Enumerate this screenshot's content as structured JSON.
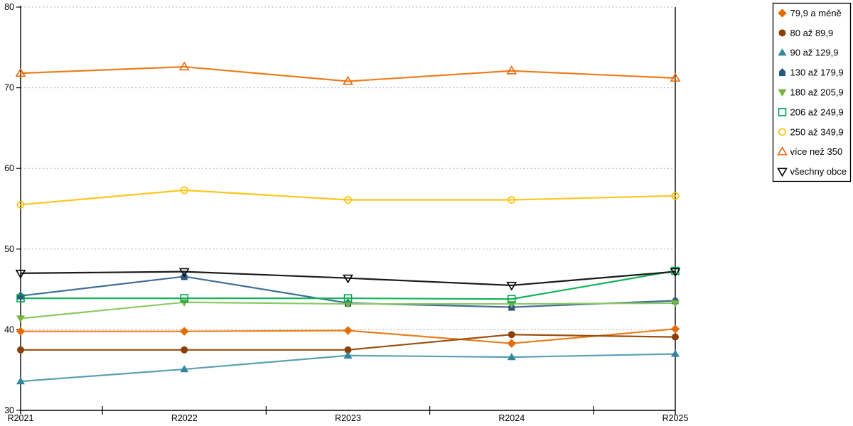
{
  "chart_data": {
    "type": "line",
    "title": "",
    "xlabel": "",
    "ylabel": "",
    "categories": [
      "R2021",
      "R2022",
      "R2023",
      "R2024",
      "R2025"
    ],
    "ylim": [
      30,
      80
    ],
    "yticks": [
      30,
      40,
      50,
      60,
      70,
      80
    ],
    "grid": "horizontal-dotted",
    "gridline_color": "#ababab",
    "axis_color": "#000000",
    "legend_position": "right",
    "legend_border_color": "#000000",
    "series": [
      {
        "name": "79,9 a méně",
        "marker": "diamond",
        "fill": "filled",
        "color": "#E36C09",
        "line_color": "#E97F1E",
        "values": [
          39.8,
          39.8,
          39.9,
          38.3,
          40.1
        ]
      },
      {
        "name": "80 až 89,9",
        "marker": "circle",
        "fill": "filled",
        "color": "#8C4007",
        "line_color": "#9A4E0E",
        "values": [
          37.5,
          37.5,
          37.5,
          39.4,
          39.1
        ]
      },
      {
        "name": "90 až 129,9",
        "marker": "triangle-up",
        "fill": "filled",
        "color": "#31859C",
        "line_color": "#5AA0B1",
        "values": [
          33.6,
          35.1,
          36.8,
          36.6,
          37.0
        ]
      },
      {
        "name": "130 až 179,9",
        "marker": "pentagon",
        "fill": "filled",
        "color": "#27587F",
        "line_color": "#3F6E99",
        "values": [
          44.2,
          46.6,
          43.3,
          42.8,
          43.6
        ]
      },
      {
        "name": "180 až 205,9",
        "marker": "triangle-down",
        "fill": "filled",
        "color": "#76B33E",
        "line_color": "#8DC863",
        "values": [
          41.4,
          43.4,
          43.2,
          43.2,
          43.3
        ]
      },
      {
        "name": "206 až 249,9",
        "marker": "square",
        "fill": "open",
        "color": "#00A550",
        "line_color": "#12B25D",
        "values": [
          43.9,
          43.9,
          43.9,
          43.8,
          47.3
        ]
      },
      {
        "name": "250 až 349,9",
        "marker": "circle",
        "fill": "open",
        "color": "#FFC000",
        "line_color": "#FFC61A",
        "values": [
          55.5,
          57.3,
          56.1,
          56.1,
          56.6
        ]
      },
      {
        "name": "více než 350",
        "marker": "triangle-up",
        "fill": "open",
        "color": "#E8680D",
        "line_color": "#ED7D1E",
        "values": [
          71.8,
          72.6,
          70.8,
          72.1,
          71.2
        ]
      },
      {
        "name": "všechny obce",
        "marker": "triangle-down",
        "fill": "open",
        "color": "#000000",
        "line_color": "#1A1A1A",
        "values": [
          47.0,
          47.2,
          46.4,
          45.5,
          47.2
        ]
      }
    ]
  }
}
